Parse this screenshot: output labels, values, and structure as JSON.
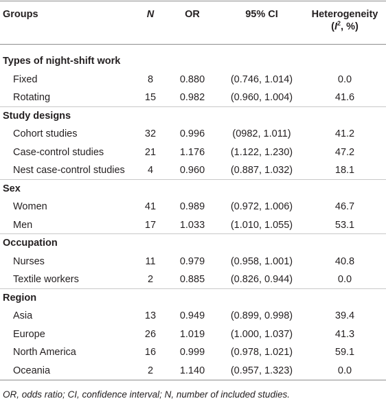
{
  "headers": {
    "groups": "Groups",
    "n": "N",
    "or": "OR",
    "ci": "95% CI",
    "het_line1": "Heterogeneity",
    "het_open": "(",
    "het_i": "I",
    "het_sup": "2",
    "het_rest": ", %)"
  },
  "sections": [
    {
      "title": "Types of night-shift work",
      "rows": [
        {
          "name": "Fixed",
          "n": "8",
          "or": "0.880",
          "ci": "(0.746, 1.014)",
          "het": "0.0"
        },
        {
          "name": "Rotating",
          "n": "15",
          "or": "0.982",
          "ci": "(0.960, 1.004)",
          "het": "41.6"
        }
      ]
    },
    {
      "title": "Study designs",
      "rows": [
        {
          "name": "Cohort studies",
          "n": "32",
          "or": "0.996",
          "ci": "(0982, 1.011)",
          "het": "41.2"
        },
        {
          "name": "Case-control studies",
          "n": "21",
          "or": "1.176",
          "ci": "(1.122, 1.230)",
          "het": "47.2"
        },
        {
          "name": "Nest case-control studies",
          "n": "4",
          "or": "0.960",
          "ci": "(0.887, 1.032)",
          "het": "18.1"
        }
      ]
    },
    {
      "title": "Sex",
      "rows": [
        {
          "name": "Women",
          "n": "41",
          "or": "0.989",
          "ci": "(0.972, 1.006)",
          "het": "46.7"
        },
        {
          "name": "Men",
          "n": "17",
          "or": "1.033",
          "ci": "(1.010, 1.055)",
          "het": "53.1"
        }
      ]
    },
    {
      "title": "Occupation",
      "rows": [
        {
          "name": "Nurses",
          "n": "11",
          "or": "0.979",
          "ci": "(0.958, 1.001)",
          "het": "40.8"
        },
        {
          "name": "Textile workers",
          "n": "2",
          "or": "0.885",
          "ci": "(0.826, 0.944)",
          "het": "0.0"
        }
      ]
    },
    {
      "title": "Region",
      "rows": [
        {
          "name": "Asia",
          "n": "13",
          "or": "0.949",
          "ci": "(0.899, 0.998)",
          "het": "39.4"
        },
        {
          "name": "Europe",
          "n": "26",
          "or": "1.019",
          "ci": "(1.000, 1.037)",
          "het": "41.3"
        },
        {
          "name": "North America",
          "n": "16",
          "or": "0.999",
          "ci": "(0.978, 1.021)",
          "het": "59.1"
        },
        {
          "name": "Oceania",
          "n": "2",
          "or": "1.140",
          "ci": "(0.957, 1.323)",
          "het": "0.0"
        }
      ]
    }
  ],
  "footnote": "OR, odds ratio; CI, confidence interval; N, number of included studies."
}
